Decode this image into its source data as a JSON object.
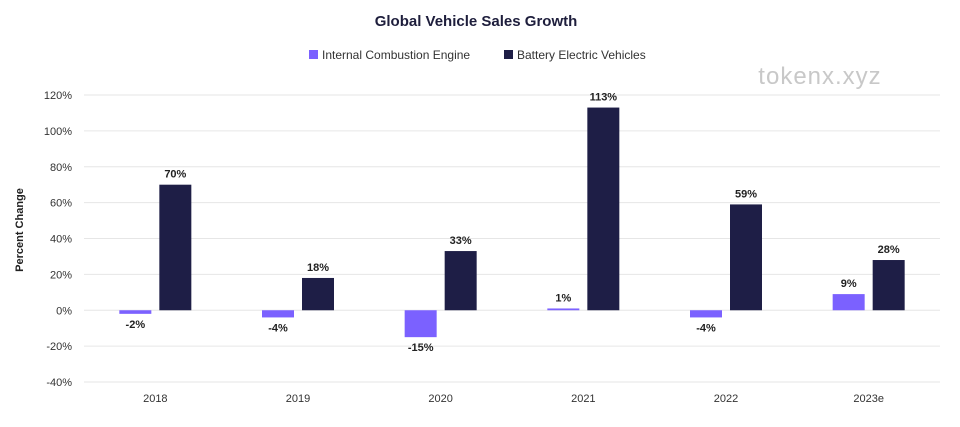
{
  "chart_data": {
    "type": "bar",
    "title": "Global Vehicle Sales Growth",
    "xlabel": "",
    "ylabel": "Percent Change",
    "categories": [
      "2018",
      "2019",
      "2020",
      "2021",
      "2022",
      "2023e"
    ],
    "series": [
      {
        "name": "Internal Combustion Engine",
        "color": "#7b61ff",
        "values": [
          -2,
          -4,
          -15,
          1,
          -4,
          9
        ]
      },
      {
        "name": "Battery Electric Vehicles",
        "color": "#1e1e46",
        "values": [
          70,
          18,
          33,
          113,
          59,
          28
        ]
      }
    ],
    "ylim": [
      -40,
      120
    ],
    "yticks": [
      -40,
      -20,
      0,
      20,
      40,
      60,
      80,
      100,
      120
    ],
    "tick_suffix": "%",
    "grid": true,
    "legend": "top-center"
  },
  "watermark": "tokenx.xyz"
}
